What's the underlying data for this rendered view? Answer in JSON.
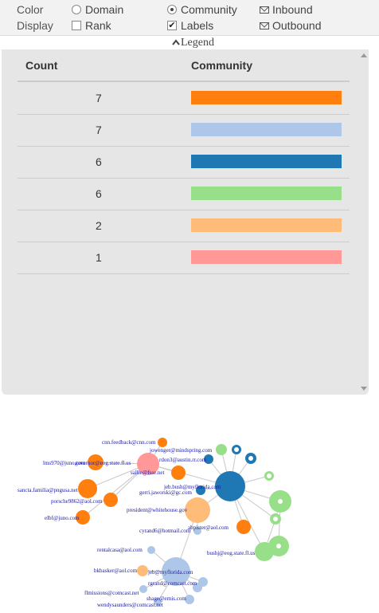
{
  "controls": {
    "color_label": "Color",
    "display_label": "Display",
    "domain": "Domain",
    "community": "Community",
    "rank": "Rank",
    "labels": "Labels",
    "inbound": "Inbound",
    "outbound": "Outbound",
    "labels_check": "✔"
  },
  "legend": {
    "toggle": "Legend",
    "col_count": "Count",
    "col_community": "Community",
    "rows": [
      {
        "count": "7",
        "color": "#ff7f0e"
      },
      {
        "count": "7",
        "color": "#aec7e8"
      },
      {
        "count": "6",
        "color": "#1f77b4"
      },
      {
        "count": "6",
        "color": "#98df8a"
      },
      {
        "count": "2",
        "color": "#ffbb78"
      },
      {
        "count": "1",
        "color": "#ff9896"
      }
    ]
  },
  "graph": {
    "labels": [
      "cnn.feedback@cnn.com",
      "jowenger@mindspring.com",
      "lms970@juno.com",
      "governor@eog.state.fl.us",
      "rdon3@austin.rr.com",
      "sallie@fsse.net",
      "jeb.bush@myflorida.com",
      "sancta.familia@pngusa.net",
      "gerri.jaworski@gc.com",
      "porsche9862@aol.com",
      "president@whitehouse.gov",
      "elbf@juno.com",
      "cyrand6@hotmail.com",
      "abpister@aol.com",
      "bushj@eog.state.fl.us",
      "rentalcasa@aol.com",
      "bkbasker@aol.com",
      "jeb@myflorida.com",
      "rgrand@comcast.com",
      "flmissions@comcast.net",
      "shage@ernis.com",
      "wendysaunders@comcast.net"
    ]
  }
}
